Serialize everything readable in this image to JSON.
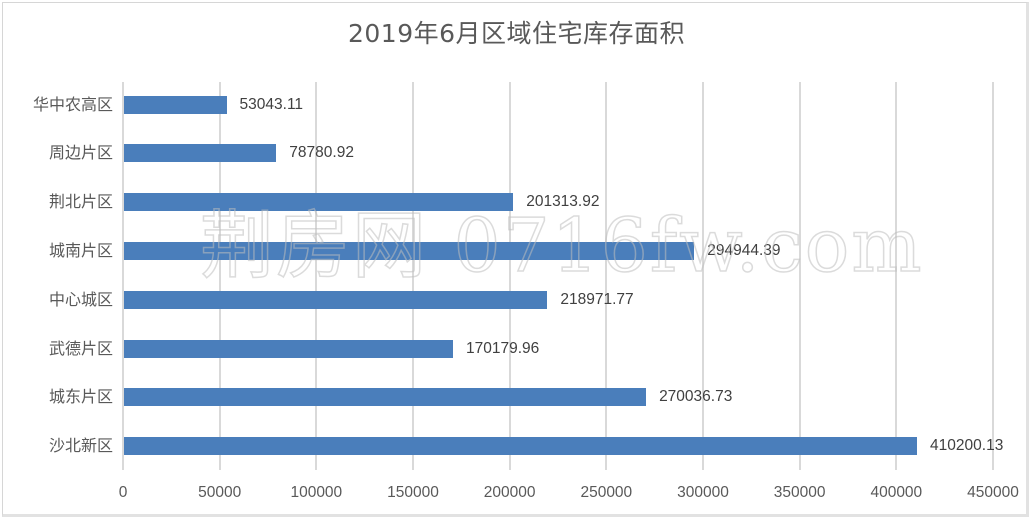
{
  "chart_data": {
    "type": "bar",
    "orientation": "horizontal",
    "title": "2019年6月区域住宅库存面积",
    "xlabel": "",
    "ylabel": "",
    "categories": [
      "华中农高区",
      "周边片区",
      "荆北片区",
      "城南片区",
      "中心城区",
      "武德片区",
      "城东片区",
      "沙北新区"
    ],
    "values": [
      53043.11,
      78780.92,
      201313.92,
      294944.39,
      218971.77,
      170179.96,
      270036.73,
      410200.13
    ],
    "value_labels": [
      "53043.11",
      "78780.92",
      "201313.92",
      "294944.39",
      "218971.77",
      "170179.96",
      "270036.73",
      "410200.13"
    ],
    "xlim": [
      0,
      450000
    ],
    "x_ticks": [
      "0",
      "50000",
      "100000",
      "150000",
      "200000",
      "250000",
      "300000",
      "350000",
      "400000",
      "450000"
    ],
    "grid": true,
    "legend": null,
    "bar_color": "#4a7ebb"
  },
  "watermark": "荆房网 0716fw.com"
}
